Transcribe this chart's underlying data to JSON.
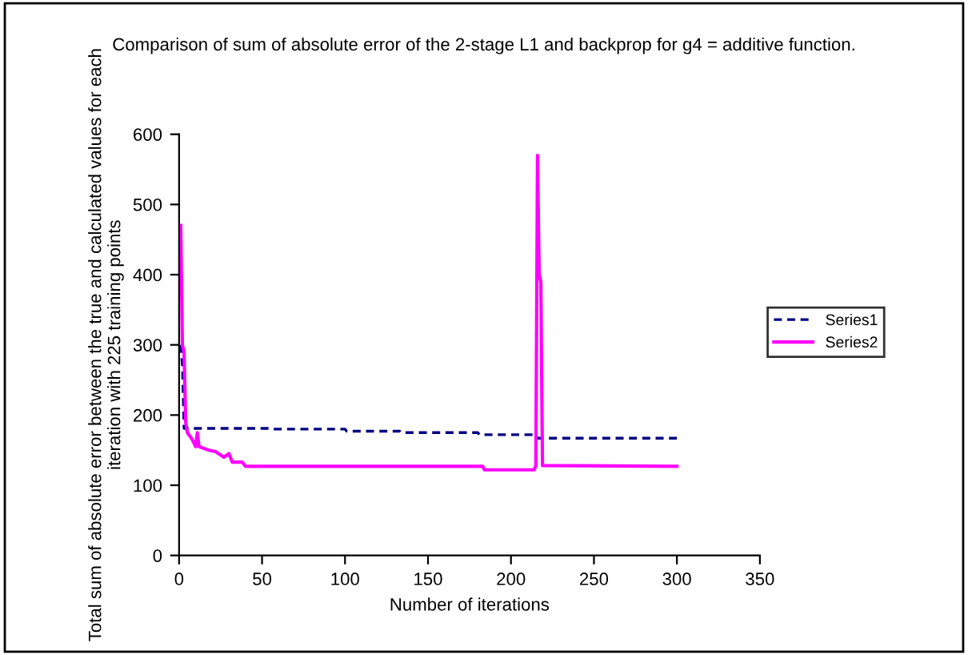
{
  "chart_data": {
    "type": "line",
    "title": "Comparison of sum of absolute error of the 2-stage L1 and backprop for g4 = additive function.",
    "xlabel": "Number of iterations",
    "ylabel": "Total sum of absolute error between the true and calculated values for each iteration with 225 training points",
    "xlim": [
      0,
      350
    ],
    "ylim": [
      0,
      600
    ],
    "xticks": [
      0,
      50,
      100,
      150,
      200,
      250,
      300,
      350
    ],
    "yticks": [
      0,
      100,
      200,
      300,
      400,
      500,
      600
    ],
    "grid": false,
    "legend": "right",
    "series": [
      {
        "name": "Series1",
        "color": "#000080",
        "line_style": "dashed",
        "x": [
          1,
          2,
          3,
          55,
          56,
          100,
          101,
          133,
          134,
          180,
          181,
          215,
          216,
          300
        ],
        "values": [
          300,
          270,
          181,
          181,
          180,
          180,
          177,
          177,
          175,
          175,
          172,
          172,
          167,
          167
        ]
      },
      {
        "name": "Series2",
        "color": "#ff00ff",
        "line_style": "solid",
        "x": [
          1,
          2,
          3,
          4,
          5,
          8,
          10,
          11,
          12,
          18,
          22,
          27,
          30,
          32,
          38,
          40,
          183,
          184,
          214,
          215,
          216,
          217,
          218,
          219,
          300
        ],
        "values": [
          470,
          300,
          290,
          190,
          175,
          165,
          155,
          175,
          155,
          150,
          148,
          140,
          145,
          133,
          133,
          127,
          127,
          122,
          122,
          128,
          570,
          400,
          390,
          128,
          127
        ]
      }
    ]
  }
}
